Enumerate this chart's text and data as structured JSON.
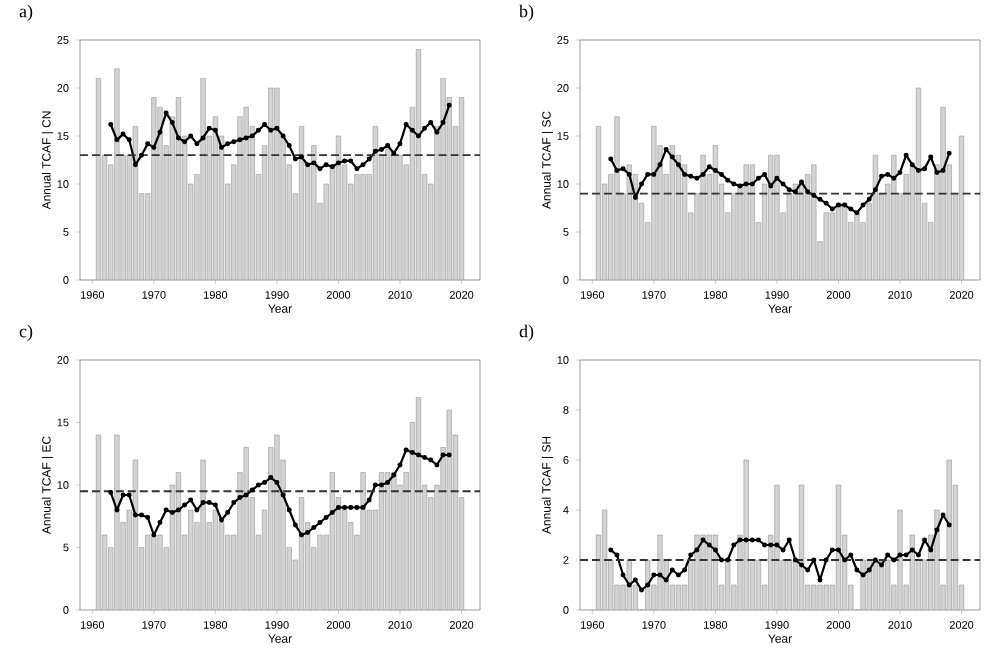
{
  "chart_data": [
    {
      "type": "bar",
      "title": "a)",
      "xlabel": "Year",
      "ylabel": "Annual TCAF | CN",
      "xlim": [
        1958,
        2023
      ],
      "xticks": [
        1960,
        1970,
        1980,
        1990,
        2000,
        2010,
        2020
      ],
      "ylim": [
        0,
        25
      ],
      "yticks": [
        0,
        5,
        10,
        15,
        20,
        25
      ],
      "x": [
        1961,
        1962,
        1963,
        1964,
        1965,
        1966,
        1967,
        1968,
        1969,
        1970,
        1971,
        1972,
        1973,
        1974,
        1975,
        1976,
        1977,
        1978,
        1979,
        1980,
        1981,
        1982,
        1983,
        1984,
        1985,
        1986,
        1987,
        1988,
        1989,
        1990,
        1991,
        1992,
        1993,
        1994,
        1995,
        1996,
        1997,
        1998,
        1999,
        2000,
        2001,
        2002,
        2003,
        2004,
        2005,
        2006,
        2007,
        2008,
        2009,
        2010,
        2011,
        2012,
        2013,
        2014,
        2015,
        2016,
        2017,
        2018,
        2019,
        2020
      ],
      "ref_lines": [
        {
          "axis": "y",
          "value": 13,
          "line_style": "dashed",
          "color": "#333333"
        }
      ],
      "series": [
        {
          "color": "#d3d3d3",
          "values": [
            21,
            13,
            12,
            22,
            13,
            13,
            16,
            9,
            9,
            19,
            18,
            14,
            17,
            19,
            15,
            10,
            11,
            21,
            15,
            17,
            15,
            10,
            12,
            17,
            18,
            16,
            11,
            14,
            20,
            20,
            15,
            12,
            9,
            16,
            12,
            14,
            8,
            10,
            12,
            15,
            12,
            10,
            11,
            11,
            11,
            16,
            13,
            14,
            13,
            13,
            12,
            18,
            24,
            11,
            10,
            16,
            21,
            19,
            16,
            19
          ]
        },
        {
          "type": "line",
          "color": "#000000",
          "marker": "circle",
          "x": [
            1963,
            1964,
            1965,
            1966,
            1967,
            1968,
            1969,
            1970,
            1971,
            1972,
            1973,
            1974,
            1975,
            1976,
            1977,
            1978,
            1979,
            1980,
            1981,
            1982,
            1983,
            1984,
            1985,
            1986,
            1987,
            1988,
            1989,
            1990,
            1991,
            1992,
            1993,
            1994,
            1995,
            1996,
            1997,
            1998,
            1999,
            2000,
            2001,
            2002,
            2003,
            2004,
            2005,
            2006,
            2007,
            2008,
            2009,
            2010,
            2011,
            2012,
            2013,
            2014,
            2015,
            2016,
            2017,
            2018
          ],
          "values": [
            16.2,
            14.6,
            15.2,
            14.6,
            12,
            13,
            14.2,
            13.8,
            15.4,
            17.4,
            16.4,
            14.8,
            14.4,
            15,
            14.2,
            14.8,
            15.8,
            15.6,
            13.8,
            14.2,
            14.4,
            14.6,
            14.8,
            15,
            15.6,
            16.2,
            15.6,
            15.8,
            15,
            14,
            12.6,
            12.8,
            12,
            12.2,
            11.6,
            12,
            11.8,
            12.2,
            12.4,
            12.4,
            11.6,
            12,
            12.6,
            13.4,
            13.6,
            14,
            13.2,
            14.2,
            16.2,
            15.6,
            15,
            15.8,
            16.4,
            15.4,
            16.4,
            18.2
          ]
        }
      ]
    },
    {
      "type": "bar",
      "title": "b)",
      "xlabel": "Year",
      "ylabel": "Annual TCAF | SC",
      "xlim": [
        1958,
        2023
      ],
      "xticks": [
        1960,
        1970,
        1980,
        1990,
        2000,
        2010,
        2020
      ],
      "ylim": [
        0,
        25
      ],
      "yticks": [
        0,
        5,
        10,
        15,
        20,
        25
      ],
      "x": [
        1961,
        1962,
        1963,
        1964,
        1965,
        1966,
        1967,
        1968,
        1969,
        1970,
        1971,
        1972,
        1973,
        1974,
        1975,
        1976,
        1977,
        1978,
        1979,
        1980,
        1981,
        1982,
        1983,
        1984,
        1985,
        1986,
        1987,
        1988,
        1989,
        1990,
        1991,
        1992,
        1993,
        1994,
        1995,
        1996,
        1997,
        1998,
        1999,
        2000,
        2001,
        2002,
        2003,
        2004,
        2005,
        2006,
        2007,
        2008,
        2009,
        2010,
        2011,
        2012,
        2013,
        2014,
        2015,
        2016,
        2017,
        2018,
        2019,
        2020
      ],
      "ref_lines": [
        {
          "axis": "y",
          "value": 9,
          "line_style": "dashed",
          "color": "#333333"
        }
      ],
      "series": [
        {
          "color": "#d3d3d3",
          "values": [
            16,
            10,
            11,
            17,
            9,
            12,
            11,
            8,
            6,
            16,
            14,
            11,
            14,
            13,
            12,
            7,
            9,
            13,
            11,
            14,
            10,
            7,
            9,
            10,
            12,
            12,
            6,
            10,
            13,
            13,
            7,
            9,
            10,
            10,
            11,
            12,
            4,
            7,
            7,
            8,
            8,
            6,
            7,
            6,
            8,
            13,
            9,
            10,
            13,
            9,
            11,
            12,
            20,
            8,
            6,
            12,
            18,
            12,
            9,
            15
          ]
        },
        {
          "type": "line",
          "color": "#000000",
          "marker": "circle",
          "x": [
            1963,
            1964,
            1965,
            1966,
            1967,
            1968,
            1969,
            1970,
            1971,
            1972,
            1973,
            1974,
            1975,
            1976,
            1977,
            1978,
            1979,
            1980,
            1981,
            1982,
            1983,
            1984,
            1985,
            1986,
            1987,
            1988,
            1989,
            1990,
            1991,
            1992,
            1993,
            1994,
            1995,
            1996,
            1997,
            1998,
            1999,
            2000,
            2001,
            2002,
            2003,
            2004,
            2005,
            2006,
            2007,
            2008,
            2009,
            2010,
            2011,
            2012,
            2013,
            2014,
            2015,
            2016,
            2017,
            2018
          ],
          "values": [
            12.6,
            11.4,
            11.6,
            11,
            8.6,
            10,
            11,
            11,
            12,
            13.6,
            12.8,
            12,
            11,
            10.8,
            10.6,
            11,
            11.8,
            11.4,
            11,
            10.4,
            10,
            9.8,
            10,
            10,
            10.6,
            11,
            9.8,
            10.6,
            10,
            9.4,
            9.2,
            10.2,
            9.2,
            8.8,
            8.4,
            8,
            7.4,
            7.8,
            7.8,
            7.4,
            7,
            7.8,
            8.4,
            9.4,
            10.8,
            11,
            10.6,
            11.2,
            13,
            12,
            11.4,
            11.6,
            12.8,
            11.2,
            11.4,
            13.2
          ]
        }
      ]
    },
    {
      "type": "bar",
      "title": "c)",
      "xlabel": "Year",
      "ylabel": "Annual TCAF | EC",
      "xlim": [
        1958,
        2023
      ],
      "xticks": [
        1960,
        1970,
        1980,
        1990,
        2000,
        2010,
        2020
      ],
      "ylim": [
        0,
        20
      ],
      "yticks": [
        0,
        5,
        10,
        15,
        20
      ],
      "x": [
        1961,
        1962,
        1963,
        1964,
        1965,
        1966,
        1967,
        1968,
        1969,
        1970,
        1971,
        1972,
        1973,
        1974,
        1975,
        1976,
        1977,
        1978,
        1979,
        1980,
        1981,
        1982,
        1983,
        1984,
        1985,
        1986,
        1987,
        1988,
        1989,
        1990,
        1991,
        1992,
        1993,
        1994,
        1995,
        1996,
        1997,
        1998,
        1999,
        2000,
        2001,
        2002,
        2003,
        2004,
        2005,
        2006,
        2007,
        2008,
        2009,
        2010,
        2011,
        2012,
        2013,
        2014,
        2015,
        2016,
        2017,
        2018,
        2019,
        2020
      ],
      "ref_lines": [
        {
          "axis": "y",
          "value": 9.5,
          "line_style": "dashed",
          "color": "#333333"
        }
      ],
      "series": [
        {
          "color": "#d3d3d3",
          "values": [
            14,
            6,
            5,
            14,
            7,
            8,
            12,
            5,
            6,
            6,
            6,
            5,
            10,
            11,
            6,
            8,
            7,
            12,
            7,
            8,
            7,
            6,
            6,
            11,
            13,
            9,
            6,
            8,
            13,
            14,
            12,
            5,
            4,
            9,
            7,
            5,
            6,
            6,
            11,
            9,
            8,
            7,
            6,
            11,
            8,
            8,
            11,
            11,
            11,
            10,
            11,
            15,
            17,
            10,
            9,
            10,
            13,
            16,
            14,
            9
          ]
        },
        {
          "type": "line",
          "color": "#000000",
          "marker": "circle",
          "x": [
            1963,
            1964,
            1965,
            1966,
            1967,
            1968,
            1969,
            1970,
            1971,
            1972,
            1973,
            1974,
            1975,
            1976,
            1977,
            1978,
            1979,
            1980,
            1981,
            1982,
            1983,
            1984,
            1985,
            1986,
            1987,
            1988,
            1989,
            1990,
            1991,
            1992,
            1993,
            1994,
            1995,
            1996,
            1997,
            1998,
            1999,
            2000,
            2001,
            2002,
            2003,
            2004,
            2005,
            2006,
            2007,
            2008,
            2009,
            2010,
            2011,
            2012,
            2013,
            2014,
            2015,
            2016,
            2017,
            2018
          ],
          "values": [
            9.4,
            8,
            9.2,
            9.2,
            7.6,
            7.6,
            7.4,
            6,
            7,
            8,
            7.8,
            8,
            8.4,
            8.8,
            8,
            8.6,
            8.6,
            8.4,
            7.2,
            7.8,
            8.6,
            9,
            9.2,
            9.6,
            10,
            10.2,
            10.6,
            10.2,
            9.2,
            8,
            6.8,
            6,
            6.2,
            6.6,
            7,
            7.4,
            7.8,
            8.2,
            8.2,
            8.2,
            8.2,
            8.2,
            8.8,
            10,
            10,
            10.2,
            10.8,
            11.6,
            12.8,
            12.6,
            12.4,
            12.2,
            12,
            11.6,
            12.4,
            12.4
          ]
        }
      ]
    },
    {
      "type": "bar",
      "title": "d)",
      "xlabel": "Year",
      "ylabel": "Annual TCAF | SH",
      "xlim": [
        1958,
        2023
      ],
      "xticks": [
        1960,
        1970,
        1980,
        1990,
        2000,
        2010,
        2020
      ],
      "ylim": [
        0,
        10
      ],
      "yticks": [
        0,
        2,
        4,
        6,
        8,
        10
      ],
      "x": [
        1961,
        1962,
        1963,
        1964,
        1965,
        1966,
        1967,
        1968,
        1969,
        1970,
        1971,
        1972,
        1973,
        1974,
        1975,
        1976,
        1977,
        1978,
        1979,
        1980,
        1981,
        1982,
        1983,
        1984,
        1985,
        1986,
        1987,
        1988,
        1989,
        1990,
        1991,
        1992,
        1993,
        1994,
        1995,
        1996,
        1997,
        1998,
        1999,
        2000,
        2001,
        2002,
        2003,
        2004,
        2005,
        2006,
        2007,
        2008,
        2009,
        2010,
        2011,
        2012,
        2013,
        2014,
        2015,
        2016,
        2017,
        2018,
        2019,
        2020
      ],
      "ref_lines": [
        {
          "axis": "y",
          "value": 2,
          "line_style": "dashed",
          "color": "#333333"
        }
      ],
      "series": [
        {
          "color": "#d3d3d3",
          "values": [
            3,
            4,
            2,
            1,
            1,
            2,
            1,
            0,
            2,
            1,
            3,
            2,
            1,
            1,
            1,
            2,
            3,
            3,
            3,
            3,
            1,
            2,
            1,
            3,
            6,
            2,
            2,
            1,
            3,
            5,
            2,
            2,
            2,
            5,
            1,
            1,
            1,
            1,
            1,
            5,
            3,
            1,
            0,
            2,
            2,
            2,
            2,
            2,
            1,
            4,
            1,
            3,
            2,
            2,
            3,
            4,
            1,
            6,
            5,
            1
          ]
        },
        {
          "type": "line",
          "color": "#000000",
          "marker": "circle",
          "x": [
            1963,
            1964,
            1965,
            1966,
            1967,
            1968,
            1969,
            1970,
            1971,
            1972,
            1973,
            1974,
            1975,
            1976,
            1977,
            1978,
            1979,
            1980,
            1981,
            1982,
            1983,
            1984,
            1985,
            1986,
            1987,
            1988,
            1989,
            1990,
            1991,
            1992,
            1993,
            1994,
            1995,
            1996,
            1997,
            1998,
            1999,
            2000,
            2001,
            2002,
            2003,
            2004,
            2005,
            2006,
            2007,
            2008,
            2009,
            2010,
            2011,
            2012,
            2013,
            2014,
            2015,
            2016,
            2017,
            2018
          ],
          "values": [
            2.4,
            2.2,
            1.4,
            1,
            1.2,
            0.8,
            1,
            1.4,
            1.4,
            1.2,
            1.6,
            1.4,
            1.6,
            2.2,
            2.4,
            2.8,
            2.6,
            2.4,
            2,
            2,
            2.6,
            2.8,
            2.8,
            2.8,
            2.8,
            2.6,
            2.6,
            2.6,
            2.4,
            2.8,
            2,
            1.8,
            1.6,
            2,
            1.2,
            2,
            2.4,
            2.4,
            2,
            2.2,
            1.6,
            1.4,
            1.6,
            2,
            1.8,
            2.2,
            2,
            2.2,
            2.2,
            2.4,
            2.2,
            2.8,
            2.4,
            3.2,
            3.8,
            3.4
          ]
        }
      ]
    }
  ]
}
